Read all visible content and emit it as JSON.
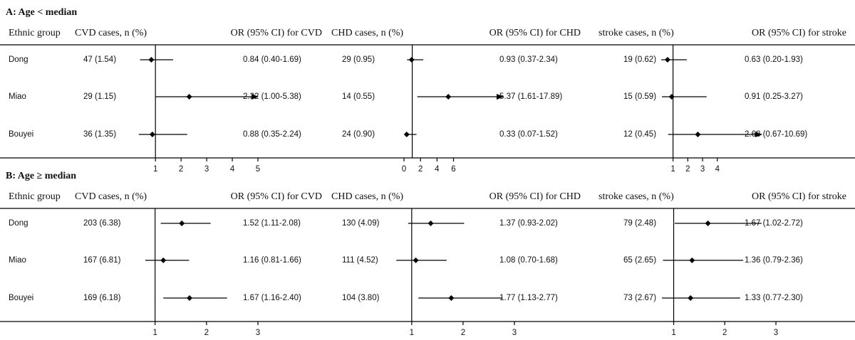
{
  "chart_data": [
    {
      "type": "forest",
      "title": "A: Age < median",
      "group_header": "Ethnic group",
      "categories": [
        "Dong",
        "Miao",
        "Bouyei"
      ],
      "ref": 1,
      "outcomes": [
        {
          "cases_header": "CVD cases, n (%)",
          "or_header": "OR (95% CI) for CVD",
          "cases": [
            "47 (1.54)",
            "29 (1.15)",
            "36 (1.35)"
          ],
          "values": [
            0.84,
            2.32,
            0.88
          ],
          "lower": [
            0.4,
            1.0,
            0.35
          ],
          "upper": [
            1.69,
            5.38,
            2.24
          ],
          "value_labels": [
            "0.84 (0.40-1.69)",
            "2.32 (1.00-5.38)",
            "0.88 (0.35-2.24)"
          ],
          "xlim": [
            0.3,
            5
          ],
          "xticks": [
            1,
            2,
            3,
            4,
            5
          ]
        },
        {
          "cases_header": "CHD cases, n (%)",
          "or_header": "OR (95% CI) for CHD",
          "cases": [
            "29 (0.95)",
            "14 (0.55)",
            "24 (0.90)"
          ],
          "values": [
            0.93,
            5.37,
            0.33
          ],
          "lower": [
            0.37,
            1.61,
            0.07
          ],
          "upper": [
            2.34,
            17.89,
            1.52
          ],
          "value_labels": [
            "0.93 (0.37-2.34)",
            "5.37 (1.61-17.89)",
            "0.33 (0.07-1.52)"
          ],
          "xlim": [
            0,
            12
          ],
          "xticks": [
            0,
            2,
            4,
            6
          ]
        },
        {
          "cases_header": "stroke cases, n (%)",
          "or_header": "OR (95% CI) for stroke",
          "cases": [
            "19 (0.62)",
            "15 (0.59)",
            "12 (0.45)"
          ],
          "values": [
            0.63,
            0.91,
            2.68
          ],
          "lower": [
            0.2,
            0.25,
            0.67
          ],
          "upper": [
            1.93,
            3.27,
            10.69
          ],
          "value_labels": [
            "0.63 (0.20-1.93)",
            "0.91 (0.25-3.27)",
            "2.68 (0.67-10.69)"
          ],
          "xlim": [
            0.2,
            7
          ],
          "xticks": [
            1,
            2,
            3,
            4
          ]
        }
      ]
    },
    {
      "type": "forest",
      "title": "B: Age ≥ median",
      "group_header": "Ethnic group",
      "categories": [
        "Dong",
        "Miao",
        "Bouyei"
      ],
      "ref": 1,
      "outcomes": [
        {
          "cases_header": "CVD cases, n (%)",
          "or_header": "OR (95% CI) for CVD",
          "cases": [
            "203 (6.38)",
            "167 (6.81)",
            "169 (6.18)"
          ],
          "values": [
            1.52,
            1.16,
            1.67
          ],
          "lower": [
            1.11,
            0.81,
            1.16
          ],
          "upper": [
            2.08,
            1.66,
            2.4
          ],
          "value_labels": [
            "1.52 (1.11-2.08)",
            "1.16 (0.81-1.66)",
            "1.67 (1.16-2.40)"
          ],
          "xlim": [
            0.7,
            3
          ],
          "xticks": [
            1,
            2,
            3
          ]
        },
        {
          "cases_header": "CHD cases, n (%)",
          "or_header": "OR (95% CI) for CHD",
          "cases": [
            "130 (4.09)",
            "111 (4.52)",
            "104 (3.80)"
          ],
          "values": [
            1.37,
            1.08,
            1.77
          ],
          "lower": [
            0.93,
            0.7,
            1.13
          ],
          "upper": [
            2.02,
            1.68,
            2.77
          ],
          "value_labels": [
            "1.37 (0.93-2.02)",
            "1.08 (0.70-1.68)",
            "1.77 (1.13-2.77)"
          ],
          "xlim": [
            0.6,
            3
          ],
          "xticks": [
            1,
            2,
            3
          ]
        },
        {
          "cases_header": "stroke cases, n (%)",
          "or_header": "OR (95% CI) for stroke",
          "cases": [
            "79 (2.48)",
            "65 (2.65)",
            "73 (2.67)"
          ],
          "values": [
            1.67,
            1.36,
            1.33
          ],
          "lower": [
            1.02,
            0.79,
            0.77
          ],
          "upper": [
            2.72,
            2.36,
            2.3
          ],
          "value_labels": [
            "1.67 (1.02-2.72)",
            "1.36 (0.79-2.36)",
            "1.33 (0.77-2.30)"
          ],
          "xlim": [
            0.7,
            3
          ],
          "xticks": [
            1,
            2,
            3
          ]
        }
      ]
    }
  ]
}
